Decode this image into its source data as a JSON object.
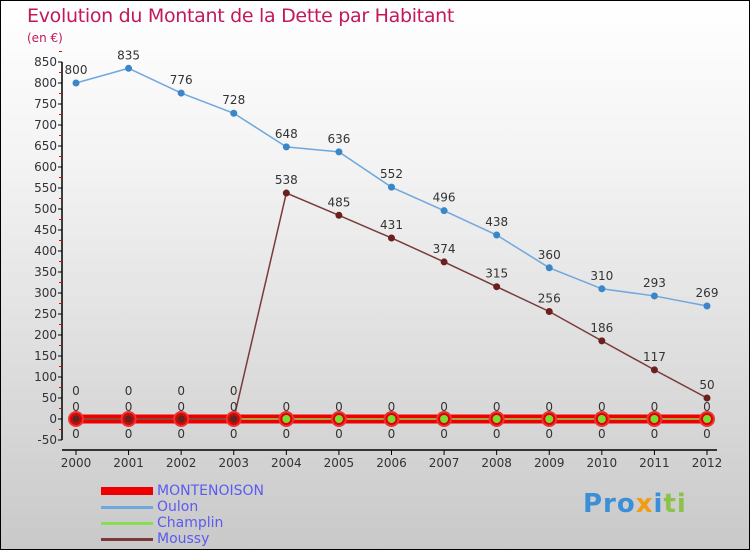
{
  "chart_data": {
    "type": "line",
    "title": "Evolution du Montant de la Dette par Habitant",
    "subtitle": "(en €)",
    "x": [
      "2000",
      "2001",
      "2002",
      "2003",
      "2004",
      "2005",
      "2006",
      "2007",
      "2008",
      "2009",
      "2010",
      "2011",
      "2012"
    ],
    "ylim": [
      -50,
      850
    ],
    "yticks": [
      -50,
      0,
      50,
      100,
      150,
      200,
      250,
      300,
      350,
      400,
      450,
      500,
      550,
      600,
      650,
      700,
      750,
      800,
      850
    ],
    "series": [
      {
        "name": "MONTENOISON",
        "color": "#ee0000",
        "values": [
          0,
          0,
          0,
          0,
          0,
          0,
          0,
          0,
          0,
          0,
          0,
          0,
          0
        ]
      },
      {
        "name": "Oulon",
        "color": "#6fa8dc",
        "values": [
          800,
          835,
          776,
          728,
          648,
          636,
          552,
          496,
          438,
          360,
          310,
          293,
          269
        ]
      },
      {
        "name": "Champlin",
        "color": "#88dd55",
        "values": [
          0,
          0,
          0,
          0,
          0,
          0,
          0,
          0,
          0,
          0,
          0,
          0,
          0
        ]
      },
      {
        "name": "Moussy",
        "color": "#7b3a3a",
        "values": [
          0,
          0,
          0,
          0,
          538,
          485,
          431,
          374,
          315,
          256,
          186,
          117,
          50
        ]
      }
    ],
    "legend_position": "bottom-left"
  },
  "logo": "Proxiti"
}
